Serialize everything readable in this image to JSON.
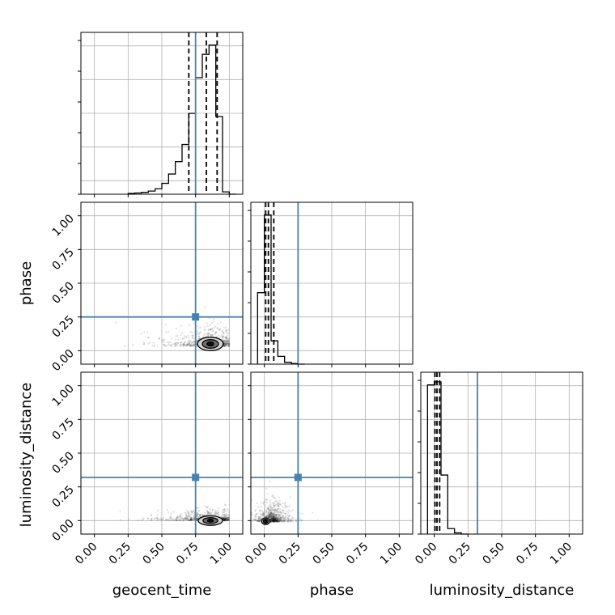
{
  "chart_data": {
    "type": "corner",
    "parameters": [
      "geocent_time",
      "phase",
      "luminosity_distance"
    ],
    "axis_labels": {
      "x": [
        "geocent_time",
        "phase",
        "luminosity_distance"
      ],
      "y": [
        "phase",
        "luminosity_distance"
      ]
    },
    "tick_values": [
      0.0,
      0.25,
      0.5,
      0.75,
      1.0
    ],
    "tick_labels": [
      "0.00",
      "0.25",
      "0.50",
      "0.75",
      "1.00"
    ],
    "ranges": {
      "geocent_time": [
        -0.1,
        1.1
      ],
      "phase": [
        -0.1,
        1.1
      ],
      "luminosity_distance": [
        -0.1,
        1.1
      ]
    },
    "truths": {
      "geocent_time": 0.75,
      "phase": 0.25,
      "luminosity_distance": 0.32
    },
    "quantiles": {
      "geocent_time": [
        0.7,
        0.83,
        0.91
      ],
      "phase": [
        0.01,
        0.03,
        0.07
      ],
      "luminosity_distance": [
        0.005,
        0.02,
        0.04
      ]
    },
    "histograms": {
      "geocent_time": {
        "bin_edges": [
          0.25,
          0.3,
          0.35,
          0.4,
          0.45,
          0.5,
          0.55,
          0.6,
          0.65,
          0.7,
          0.75,
          0.8,
          0.85,
          0.9,
          0.95,
          1.0,
          1.05
        ],
        "counts": [
          0.005,
          0.008,
          0.012,
          0.02,
          0.035,
          0.07,
          0.13,
          0.21,
          0.32,
          0.52,
          0.75,
          0.9,
          0.96,
          0.5,
          0.015,
          0.0
        ]
      },
      "phase": {
        "bin_edges": [
          -0.05,
          0.0,
          0.05,
          0.1,
          0.15,
          0.2,
          0.25,
          0.3
        ],
        "counts": [
          0.46,
          0.96,
          0.15,
          0.05,
          0.012,
          0.004,
          0.0
        ]
      },
      "luminosity_distance": {
        "bin_edges": [
          -0.05,
          0.0,
          0.05,
          0.1,
          0.15,
          0.2,
          0.25
        ],
        "counts": [
          0.96,
          0.98,
          0.38,
          0.035,
          0.008,
          0.0
        ]
      }
    },
    "density_2d": [
      {
        "x": "geocent_time",
        "y": "phase",
        "sample_center": [
          0.84,
          0.05
        ],
        "sample_spread": [
          0.13,
          0.045
        ],
        "contour_center": [
          0.86,
          0.05
        ],
        "contour_radii": [
          [
            0.095,
            0.05
          ],
          [
            0.06,
            0.032
          ],
          [
            0.025,
            0.015
          ]
        ]
      },
      {
        "x": "geocent_time",
        "y": "luminosity_distance",
        "sample_center": [
          0.84,
          0.01
        ],
        "sample_spread": [
          0.13,
          0.025
        ],
        "contour_center": [
          0.86,
          0.0
        ],
        "contour_radii": [
          [
            0.09,
            0.035
          ],
          [
            0.055,
            0.022
          ],
          [
            0.022,
            0.01
          ]
        ]
      },
      {
        "x": "phase",
        "y": "luminosity_distance",
        "sample_center": [
          0.06,
          0.01
        ],
        "sample_spread": [
          0.06,
          0.05
        ],
        "contour_center": [
          0.01,
          -0.005
        ],
        "contour_radii": [
          [
            0.03,
            0.025
          ],
          [
            0.018,
            0.015
          ],
          [
            0.008,
            0.007
          ]
        ]
      }
    ],
    "grid": true
  }
}
